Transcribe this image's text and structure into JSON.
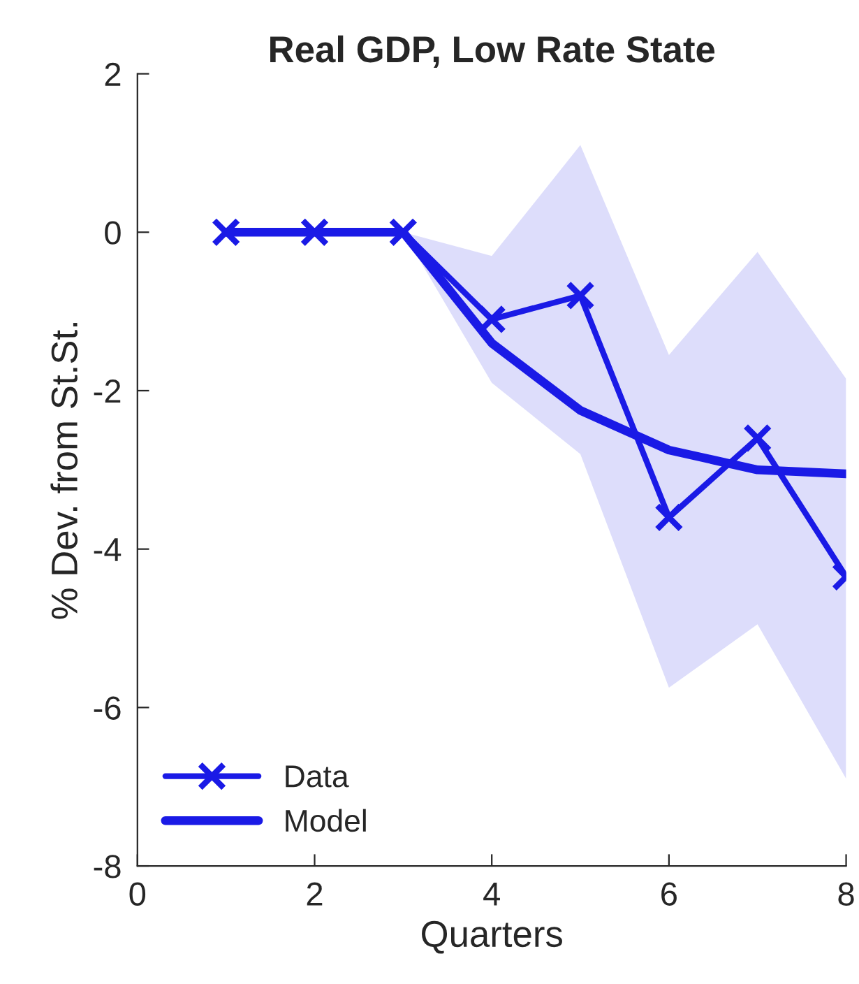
{
  "chart_data": {
    "type": "line",
    "title": "Real GDP, Low Rate State",
    "xlabel": "Quarters",
    "ylabel": "% Dev. from St.St.",
    "x": [
      1,
      2,
      3,
      4,
      5,
      6,
      7,
      8
    ],
    "series": [
      {
        "name": "Data",
        "color": "#1a1ae6",
        "marker": "cross",
        "values": [
          0,
          0,
          0,
          -1.1,
          -0.8,
          -3.6,
          -2.6,
          -4.35
        ]
      },
      {
        "name": "Model",
        "color": "#1a1ae6",
        "marker": "none",
        "values": [
          0,
          0,
          0,
          -1.4,
          -2.25,
          -2.75,
          -3.0,
          -3.05
        ],
        "lower": [
          null,
          null,
          0,
          -1.9,
          -2.8,
          -5.75,
          -4.95,
          -6.9
        ],
        "upper": [
          null,
          null,
          0,
          -0.3,
          1.1,
          -1.55,
          -0.25,
          -1.85
        ]
      }
    ],
    "xlim": [
      0,
      8
    ],
    "xticks": [
      0,
      2,
      4,
      6,
      8
    ],
    "ylim": [
      -8,
      2
    ],
    "yticks": [
      -8,
      -6,
      -4,
      -2,
      0,
      2
    ],
    "grid": false,
    "legend": "bottom left"
  }
}
